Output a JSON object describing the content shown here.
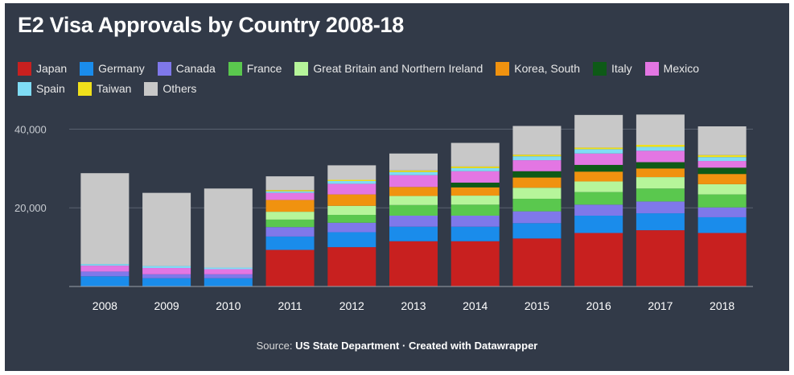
{
  "title": "E2 Visa Approvals by Country 2008-18",
  "source": {
    "prefix": "Source:",
    "org": "US State Department",
    "sep": "·",
    "credit": "Created with Datawrapper"
  },
  "colors": {
    "background": "#323a48",
    "gridline": "#5a6270",
    "axis_text": "#c8ccd2"
  },
  "chart_data": {
    "type": "bar",
    "stacked": true,
    "title": "E2 Visa Approvals by Country 2008-18",
    "categories": [
      "2008",
      "2009",
      "2010",
      "2011",
      "2012",
      "2013",
      "2014",
      "2015",
      "2016",
      "2017",
      "2018"
    ],
    "ylim": [
      0,
      45000
    ],
    "yticks": [
      20000,
      40000
    ],
    "ytick_labels": [
      "20,000",
      "40,000"
    ],
    "grid": true,
    "legend_position": "top",
    "series": [
      {
        "name": "Japan",
        "color": "#c8201f",
        "values": [
          0,
          0,
          0,
          9300,
          10000,
          11500,
          11500,
          12200,
          13600,
          14300,
          13600
        ]
      },
      {
        "name": "Germany",
        "color": "#1a8ceb",
        "values": [
          2600,
          2100,
          2100,
          3400,
          3800,
          3700,
          3700,
          3900,
          4400,
          4300,
          4000
        ]
      },
      {
        "name": "Canada",
        "color": "#7f78ea",
        "values": [
          1200,
          1000,
          1000,
          2400,
          2400,
          2800,
          2800,
          3000,
          2800,
          3000,
          2500
        ]
      },
      {
        "name": "France",
        "color": "#5ac84e",
        "values": [
          0,
          0,
          0,
          1900,
          2000,
          2700,
          2800,
          3200,
          3200,
          3300,
          3300
        ]
      },
      {
        "name": "Great Britain and Northern Ireland",
        "color": "#b6f59a",
        "values": [
          0,
          0,
          0,
          2000,
          2300,
          2300,
          2300,
          2800,
          2700,
          2900,
          2600
        ]
      },
      {
        "name": "Korea, South",
        "color": "#f0920f",
        "values": [
          0,
          0,
          0,
          3000,
          2900,
          2300,
          2100,
          2600,
          2500,
          2200,
          2600
        ]
      },
      {
        "name": "Italy",
        "color": "#0e5a17",
        "values": [
          0,
          0,
          0,
          0,
          0,
          0,
          1200,
          1600,
          1700,
          1600,
          1600
        ]
      },
      {
        "name": "Mexico",
        "color": "#e376e3",
        "values": [
          1500,
          1600,
          1300,
          1800,
          2700,
          3000,
          2900,
          2800,
          2900,
          2900,
          1700
        ]
      },
      {
        "name": "Spain",
        "color": "#7fdcf5",
        "values": [
          400,
          500,
          400,
          400,
          700,
          800,
          800,
          1000,
          1100,
          1000,
          1000
        ]
      },
      {
        "name": "Taiwan",
        "color": "#f0e01b",
        "values": [
          0,
          0,
          0,
          300,
          300,
          400,
          400,
          400,
          400,
          500,
          500
        ]
      },
      {
        "name": "Others",
        "color": "#c8c8c8",
        "values": [
          23100,
          18600,
          20100,
          3500,
          3700,
          4300,
          6000,
          7300,
          8300,
          7700,
          7300
        ]
      }
    ]
  }
}
